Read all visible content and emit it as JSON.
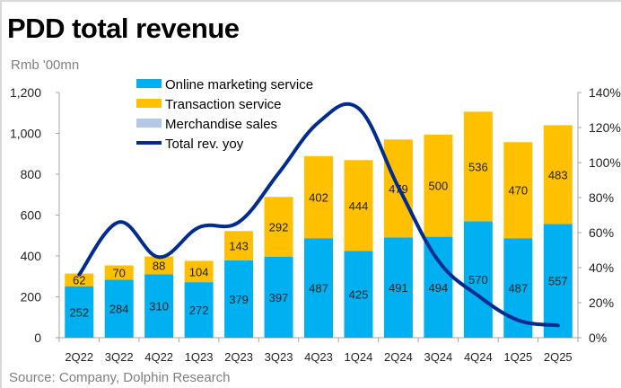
{
  "header": {
    "title": "PDD total revenue",
    "unit": "Rmb '00mn",
    "source": "Source: Company, Dolphin Research"
  },
  "chart_data": {
    "type": "bar",
    "stacked": true,
    "title": "PDD total revenue",
    "ylabel": "Rmb '00mn",
    "ylim": [
      0,
      1200
    ],
    "yticks": [
      "0",
      "200",
      "400",
      "600",
      "800",
      "1,000",
      "1,200"
    ],
    "y2lim": [
      0,
      140
    ],
    "y2ticks": [
      "0%",
      "20%",
      "40%",
      "60%",
      "80%",
      "100%",
      "120%",
      "140%"
    ],
    "categories": [
      "2Q22",
      "3Q22",
      "4Q22",
      "1Q23",
      "2Q23",
      "3Q23",
      "4Q23",
      "1Q24",
      "2Q24",
      "3Q24",
      "4Q24",
      "1Q25",
      "2Q25"
    ],
    "series": [
      {
        "name": "Online marketing service",
        "type": "bar",
        "color": "#00b0f0",
        "values": [
          252,
          284,
          310,
          272,
          379,
          397,
          487,
          425,
          491,
          494,
          570,
          487,
          557
        ]
      },
      {
        "name": "Transaction service",
        "type": "bar",
        "color": "#ffc000",
        "values": [
          62,
          70,
          88,
          104,
          143,
          292,
          402,
          444,
          479,
          500,
          536,
          470,
          483
        ]
      },
      {
        "name": "Merchandise sales",
        "type": "bar",
        "color": "#b4c7e7",
        "values": [
          0,
          0,
          0,
          0,
          0,
          0,
          0,
          0,
          0,
          0,
          0,
          0,
          0
        ]
      },
      {
        "name": "Total rev. yoy",
        "type": "line",
        "axis": "right",
        "color": "#002b91",
        "values": [
          36,
          66,
          46,
          63,
          66,
          94,
          123,
          131,
          86,
          44,
          24,
          10,
          7
        ]
      }
    ],
    "legend": "top-left",
    "grid": false
  }
}
